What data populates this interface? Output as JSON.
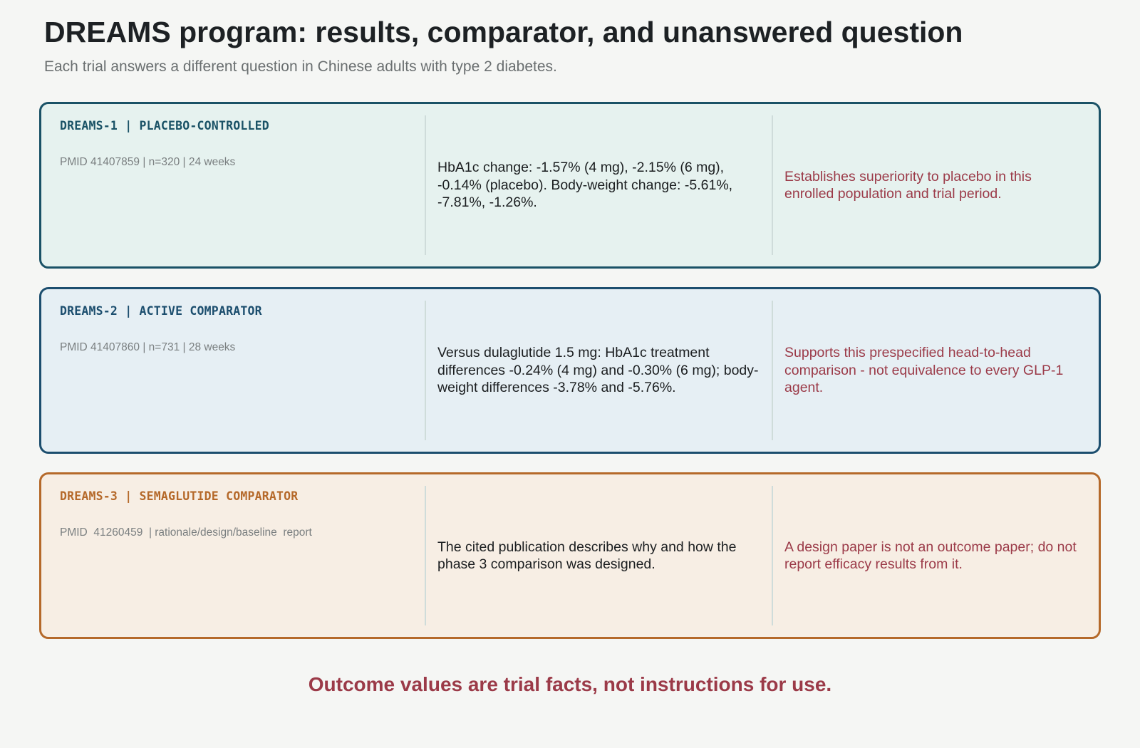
{
  "header": {
    "title": "DREAMS program: results, comparator, and unanswered question",
    "subtitle": "Each trial answers a different question in Chinese adults with type 2 diabetes."
  },
  "trials": [
    {
      "name": "DREAMS-1 | PLACEBO-CONTROLLED",
      "meta": "PMID 41407859 | n=320 | 24 weeks",
      "result": "HbA1c change: -1.57% (4 mg), -2.15% (6 mg), -0.14% (placebo).  Body-weight change: -5.61%, -7.81%, -1.26%.",
      "note": "Establishes superiority to placebo in this enrolled population and trial period.",
      "colors": {
        "border": "#1a5266",
        "bg": "#e6f2ef",
        "name": "#1a5266"
      }
    },
    {
      "name": "DREAMS-2 | ACTIVE COMPARATOR",
      "meta": "PMID 41407860 | n=731 | 28 weeks",
      "result": "Versus dulaglutide 1.5 mg: HbA1c treatment differences -0.24% (4 mg) and -0.30% (6 mg); body-weight differences -3.78% and -5.76%.",
      "note": "Supports this prespecified head-to-head comparison - not equivalence to every GLP-1 agent.",
      "colors": {
        "border": "#1c4e6e",
        "bg": "#e6eff4",
        "name": "#1c4e6e"
      }
    },
    {
      "name": "DREAMS-3 | SEMAGLUTIDE COMPARATOR",
      "meta": "PMID  41260459  | rationale/design/baseline  report",
      "result": "The cited publication describes why and how the phase 3 comparison was designed.",
      "note": "A design paper is not an outcome paper; do not report efficacy results from it.",
      "colors": {
        "border": "#b5692a",
        "bg": "#f7eee4",
        "name": "#b5692a"
      }
    }
  ],
  "footer": {
    "note": "Outcome values are trial facts, not instructions for use."
  }
}
